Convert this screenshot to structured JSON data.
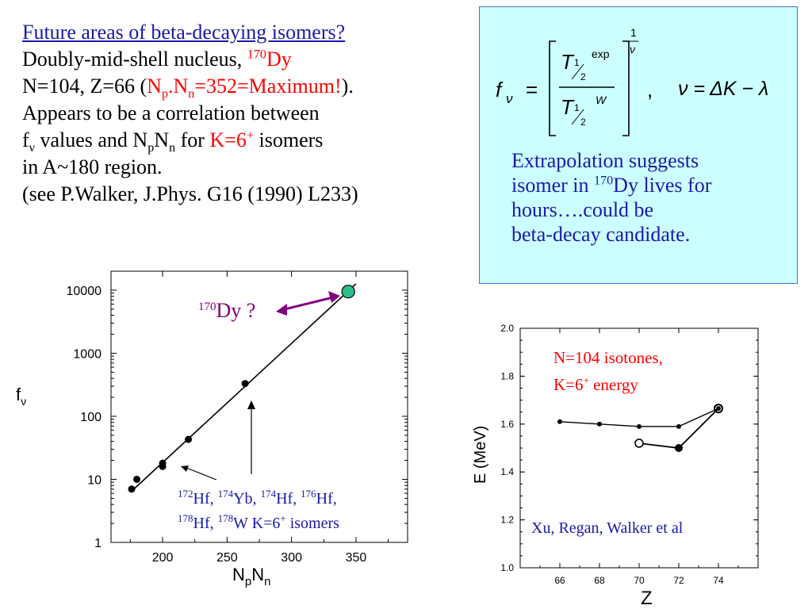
{
  "intro": {
    "title": "Future areas of beta-decaying isomers?",
    "line2_prefix": "Doubly-mid-shell nucleus, ",
    "line2_mass": "170",
    "line2_elem": "Dy",
    "line3_a": "N=104, Z=66 (",
    "line3_np_a": "N",
    "line3_np_b": "p",
    "line3_dot": ".N",
    "line3_nn": "n",
    "line3_eq": "=352=Maximum!",
    "line3_end": ").",
    "line4": "Appears to be a correlation between",
    "line5_f": "f",
    "line5_nu": "ν",
    "line5_mid": " values and N",
    "line5_p": "p",
    "line5_N": "N",
    "line5_n": "n",
    "line5_for": " for ",
    "line5_k": "K=6",
    "line5_plus": "+",
    "line5_end": " isomers",
    "line6": "in A~180 region.",
    "line7": "(see P.Walker, J.Phys. G16 (1990) L233)"
  },
  "formula": {
    "f": "f",
    "nu": "ν",
    "eq": "=",
    "T": "T",
    "half_num": "1",
    "half_den": "2",
    "exp": "exp",
    "W": "W",
    "power_num": "1",
    "power_den": "ν",
    "comma": ",",
    "nu_def": "ν = ΔK − λ",
    "extrap_1": "Extrapolation suggests",
    "extrap_2a": "isomer in ",
    "extrap_2mass": "170",
    "extrap_2b": "Dy lives for",
    "extrap_3": "hours….could be",
    "extrap_4": "beta-decay candidate."
  },
  "chart_data": [
    {
      "type": "scatter",
      "xlabel_main": "N",
      "xlabel_sub1": "p",
      "xlabel_mid": "N",
      "xlabel_sub2": "n",
      "ylabel_main": "f",
      "ylabel_sub": "ν",
      "yscale": "log",
      "xlim": [
        160,
        390
      ],
      "ylim": [
        1,
        20000
      ],
      "xticks": [
        "200",
        "250",
        "300",
        "350"
      ],
      "yticks": [
        "10000",
        "1000",
        "100",
        "10",
        "1"
      ],
      "points": [
        {
          "x": 176,
          "y": 7
        },
        {
          "x": 180,
          "y": 10
        },
        {
          "x": 200,
          "y": 16
        },
        {
          "x": 200,
          "y": 18
        },
        {
          "x": 220,
          "y": 43
        },
        {
          "x": 264,
          "y": 330
        }
      ],
      "highlight_point": {
        "x": 344,
        "y": 9500,
        "color": "#2bbf8a"
      },
      "fit_line": [
        {
          "x": 176,
          "y": 6.5
        },
        {
          "x": 350,
          "y": 12600
        }
      ],
      "annotation_dy_mass": "170",
      "annotation_dy": "Dy ?",
      "annotation_iso_1": [
        {
          "m": "172",
          "t": "Hf, "
        },
        {
          "m": "174",
          "t": "Yb, "
        },
        {
          "m": "174",
          "t": "Hf, "
        },
        {
          "m": "176",
          "t": "Hf,"
        }
      ],
      "annotation_iso_2": [
        {
          "m": "178",
          "t": "Hf, "
        },
        {
          "m": "178",
          "t": "W K=6"
        }
      ],
      "annotation_iso_2_plus": "+",
      "annotation_iso_2_end": " isomers"
    },
    {
      "type": "line",
      "xlabel": "Z",
      "ylabel": "E (MeV)",
      "xlim": [
        64,
        76
      ],
      "ylim": [
        1.0,
        2.0
      ],
      "xticks": [
        "66",
        "68",
        "70",
        "72",
        "74"
      ],
      "yticks": [
        "2.0",
        "1.8",
        "1.6",
        "1.4",
        "1.2",
        "1.0"
      ],
      "series": [
        {
          "values": [
            {
              "x": 66,
              "y": 1.61
            },
            {
              "x": 68,
              "y": 1.6
            },
            {
              "x": 70,
              "y": 1.59
            },
            {
              "x": 72,
              "y": 1.59
            },
            {
              "x": 74,
              "y": 1.665
            }
          ]
        },
        {
          "values": [
            {
              "x": 70,
              "y": 1.52
            },
            {
              "x": 72,
              "y": 1.5
            },
            {
              "x": 74,
              "y": 1.665
            }
          ]
        }
      ],
      "legend_1": "N=104 isotones,",
      "legend_2a": "K=6",
      "legend_2plus": "+",
      "legend_2b": " energy",
      "credit": "Xu, Regan, Walker et al"
    }
  ]
}
